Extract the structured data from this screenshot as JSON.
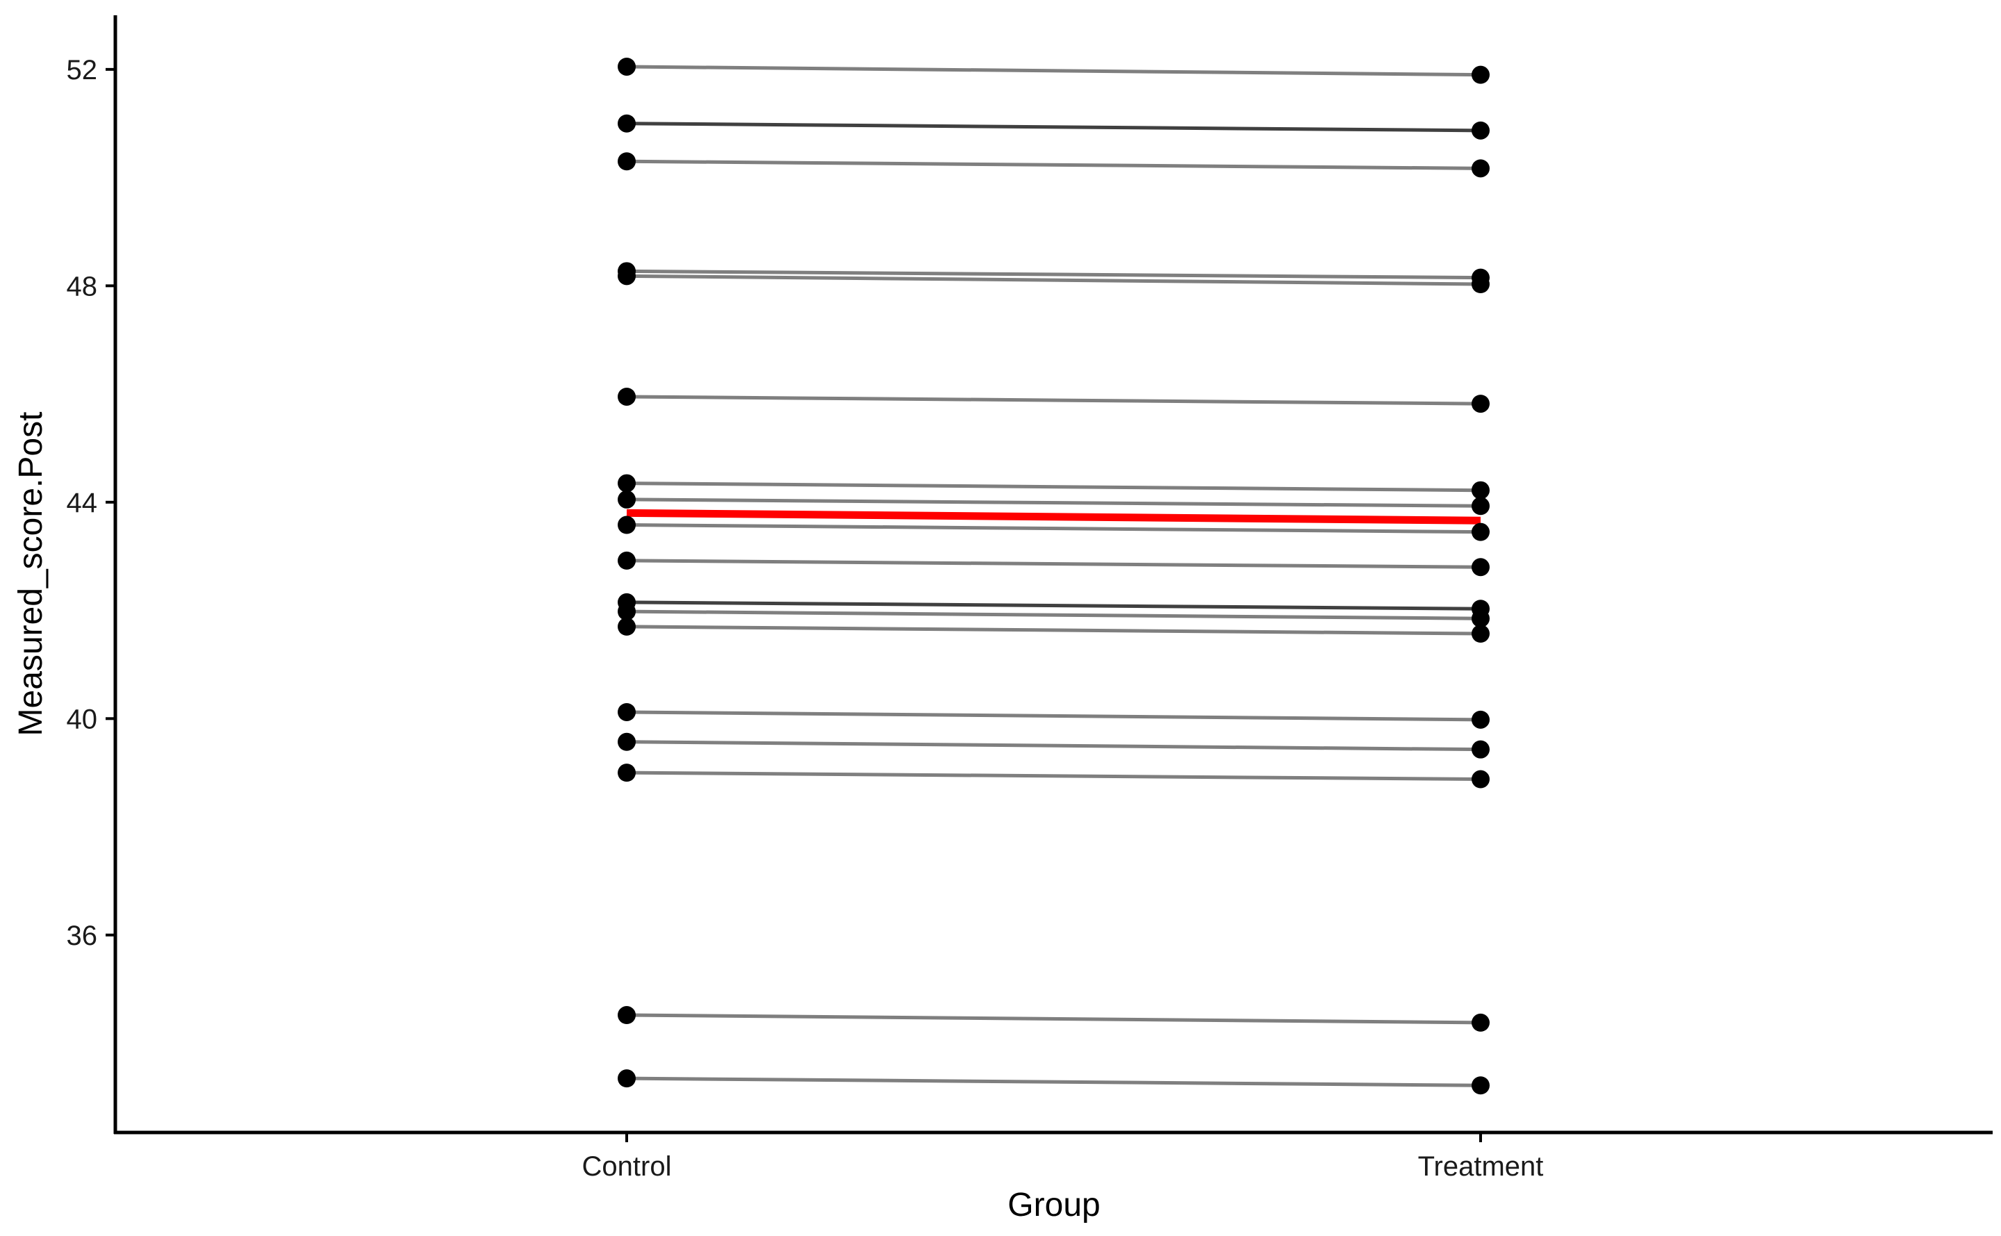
{
  "chart_data": {
    "type": "line",
    "title": "",
    "xlabel": "Group",
    "ylabel": "Measured_score.Post",
    "categories": [
      "Control",
      "Treatment"
    ],
    "ylim": [
      32.35,
      53.0
    ],
    "yticks": [
      36,
      40,
      44,
      48,
      52
    ],
    "ytick_labels": [
      "36",
      "40",
      "44",
      "48",
      "52"
    ],
    "grid": false,
    "legend": "none",
    "series": [
      {
        "values": [
          52.05,
          51.9
        ],
        "color": "#7f7f7f"
      },
      {
        "values": [
          51.0,
          50.87
        ],
        "color": "#404040"
      },
      {
        "values": [
          50.3,
          50.17
        ],
        "color": "#7f7f7f"
      },
      {
        "values": [
          48.27,
          48.15
        ],
        "color": "#7f7f7f"
      },
      {
        "values": [
          48.18,
          48.03
        ],
        "color": "#7f7f7f"
      },
      {
        "values": [
          45.95,
          45.82
        ],
        "color": "#7f7f7f"
      },
      {
        "values": [
          44.35,
          44.22
        ],
        "color": "#7f7f7f"
      },
      {
        "values": [
          44.05,
          43.93
        ],
        "color": "#7f7f7f"
      },
      {
        "values": [
          43.58,
          43.45
        ],
        "color": "#7f7f7f"
      },
      {
        "values": [
          42.92,
          42.8
        ],
        "color": "#7f7f7f"
      },
      {
        "values": [
          42.15,
          42.03
        ],
        "color": "#404040"
      },
      {
        "values": [
          41.98,
          41.85
        ],
        "color": "#7f7f7f"
      },
      {
        "values": [
          41.7,
          41.57
        ],
        "color": "#7f7f7f"
      },
      {
        "values": [
          40.12,
          39.98
        ],
        "color": "#7f7f7f"
      },
      {
        "values": [
          39.57,
          39.43
        ],
        "color": "#7f7f7f"
      },
      {
        "values": [
          39.0,
          38.88
        ],
        "color": "#7f7f7f"
      },
      {
        "values": [
          34.52,
          34.38
        ],
        "color": "#7f7f7f"
      },
      {
        "values": [
          33.35,
          33.22
        ],
        "color": "#7f7f7f"
      }
    ],
    "mean_line": {
      "values": [
        43.8,
        43.66
      ],
      "color": "#ff0000"
    },
    "point_color": "#000000",
    "axis_color": "#000000"
  }
}
